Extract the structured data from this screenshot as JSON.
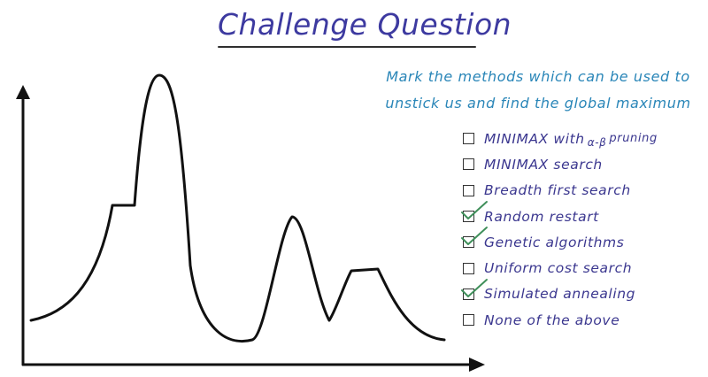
{
  "title": "Challenge Question",
  "prompt": {
    "line1": "Mark the methods which can be used to",
    "line2": "unstick us and find the global maximum"
  },
  "options": [
    {
      "label_main": "MINIMAX with",
      "label_ab": "α-β",
      "label_tail": "pruning",
      "checked": false
    },
    {
      "label": "MINIMAX search",
      "checked": false
    },
    {
      "label": "Breadth first search",
      "checked": false
    },
    {
      "label": "Random restart",
      "checked": true
    },
    {
      "label": "Genetic algorithms",
      "checked": true
    },
    {
      "label": "Uniform cost search",
      "checked": false
    },
    {
      "label": "Simulated annealing",
      "checked": true
    },
    {
      "label": "None of the above",
      "checked": false
    }
  ],
  "colors": {
    "title": "#3d3aa0",
    "prompt": "#2a86b8",
    "option_text": "#3b378f",
    "checkmark": "#3f8f5a",
    "curve": "#111111"
  }
}
